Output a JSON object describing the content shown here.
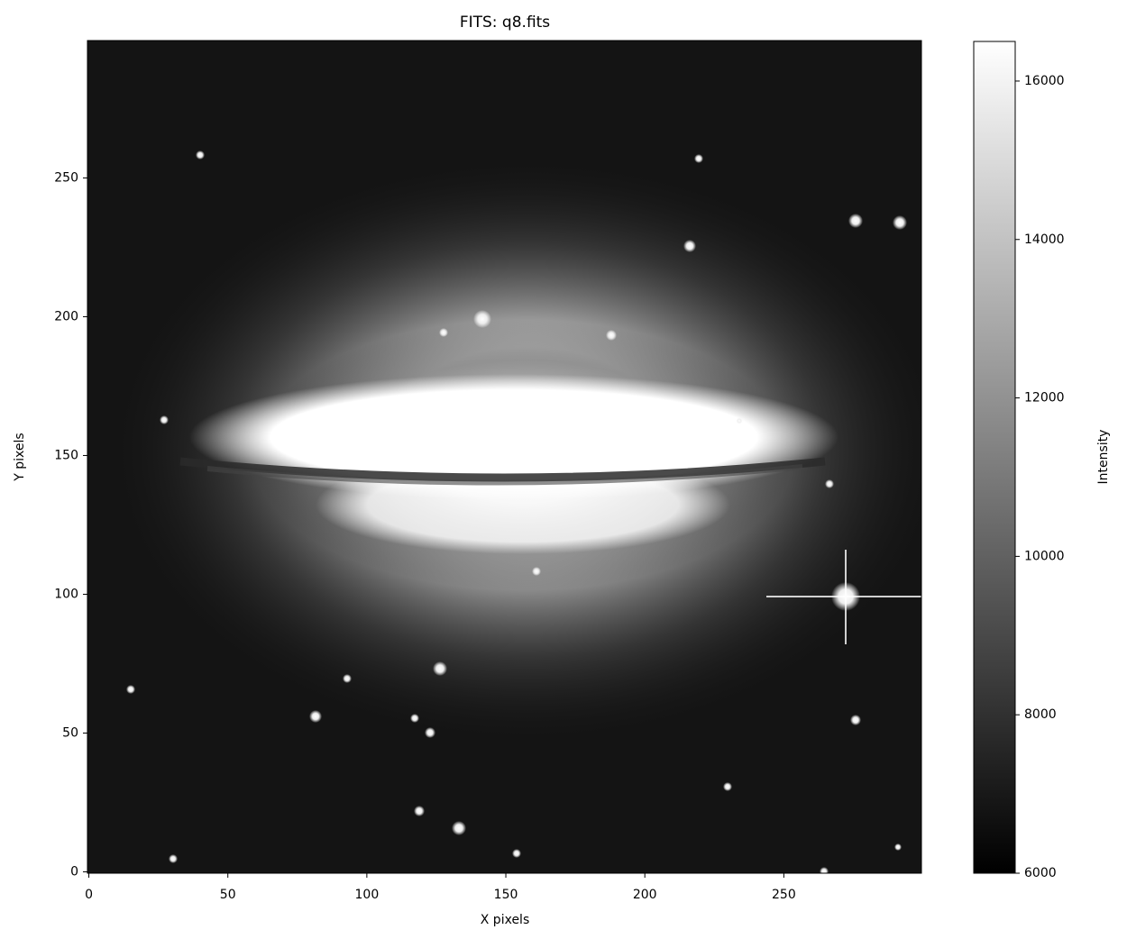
{
  "chart_data": {
    "type": "image",
    "title": "FITS: q8.fits",
    "x_label": "X pixels",
    "y_label": "Y pixels",
    "xlim": [
      -0.5,
      299.5
    ],
    "ylim": [
      -0.5,
      299.5
    ],
    "xticks": [
      0,
      50,
      100,
      150,
      200,
      250
    ],
    "yticks": [
      0,
      50,
      100,
      150,
      200,
      250
    ],
    "colorbar": {
      "label": "Intensity",
      "lim": [
        6000,
        16500
      ],
      "ticks": [
        6000,
        8000,
        10000,
        12000,
        14000,
        16000
      ],
      "colormap": "gray"
    }
  }
}
